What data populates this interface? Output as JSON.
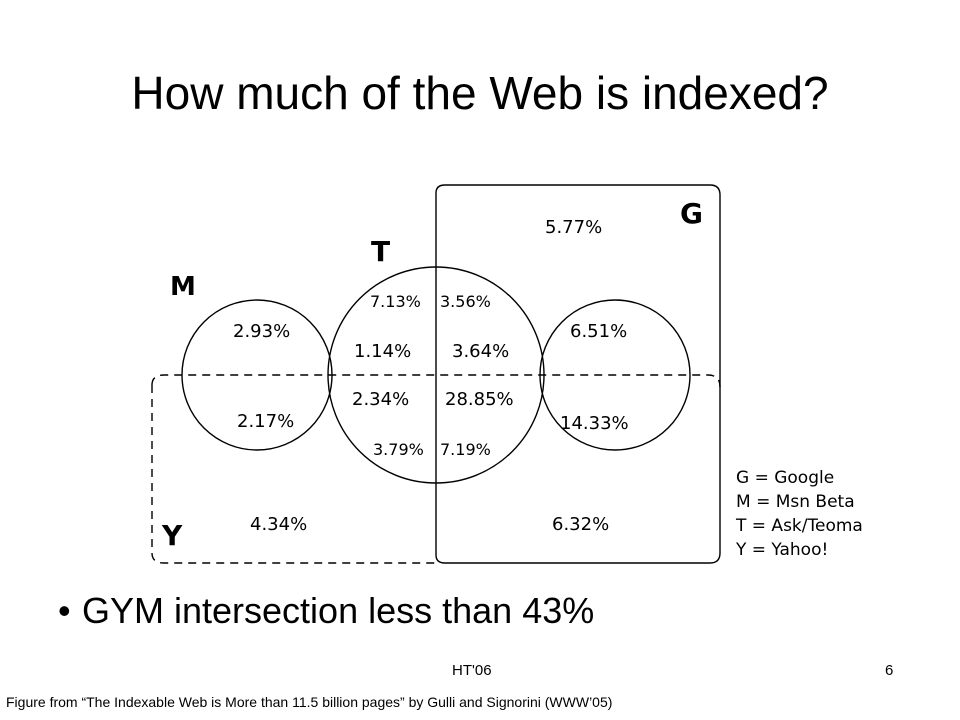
{
  "slide": {
    "title": "How much of the Web is indexed?",
    "bullet": "GYM intersection less than 43%",
    "footer_center": "HT'06",
    "page_number": "6",
    "caption": "Figure from “The Indexable Web is More than 11.5 billion pages” by Gulli and Signorini (WWW’05)"
  },
  "venn": {
    "set_labels": {
      "G": "G",
      "M": "M",
      "T": "T",
      "Y": "Y"
    },
    "regions": {
      "g_only": "5.77%",
      "t_m_g_top_left": "7.13%",
      "t_m_g_top_right": "3.56%",
      "m_only_top": "2.93%",
      "t_m_only": "1.14%",
      "t_g_only": "3.64%",
      "g_m_top": "6.51%",
      "t_y_left": "2.34%",
      "t_y_right": "28.85%",
      "m_y": "2.17%",
      "g_y": "14.33%",
      "t_bottom_left": "3.79%",
      "t_bottom_right": "7.19%",
      "y_only": "4.34%",
      "g_y_only": "6.32%"
    },
    "legend": [
      "G = Google",
      "M = Msn Beta",
      "T = Ask/Teoma",
      "Y = Yahoo!"
    ]
  }
}
